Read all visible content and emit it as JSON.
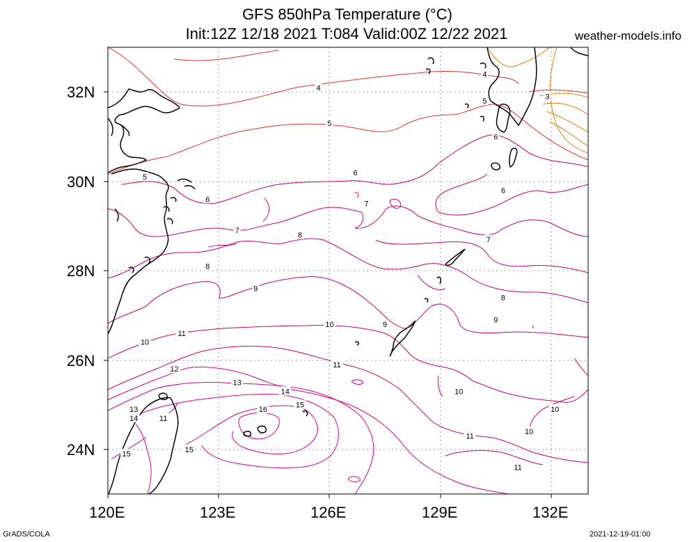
{
  "title": {
    "line1": "GFS 850hPa Temperature (°C)",
    "line2": "Init:12Z 12/18 2021 T:084 Valid:00Z 12/22 2021"
  },
  "site": "weather-models.info",
  "footer": {
    "left": "GrADS/COLA",
    "right": "2021-12-19-01:00"
  },
  "axes": {
    "lat_labels": [
      "32N",
      "30N",
      "28N",
      "26N",
      "24N"
    ],
    "lon_labels": [
      "120E",
      "123E",
      "126E",
      "129E",
      "132E"
    ]
  },
  "extent": {
    "lon": [
      120,
      133
    ],
    "lat": [
      23,
      33
    ]
  },
  "colors": {
    "cold_contours": "#d8810a",
    "cool_contours": "#e0302e",
    "mid_contours": "#c8006a",
    "warm_contours": "#d6008a",
    "coastline": "#000000",
    "grid": "#9a9a9a"
  },
  "contour_labels": [
    {
      "text": "3",
      "lon": 131.9,
      "lat": 31.9
    },
    {
      "text": "4",
      "lon": 125.7,
      "lat": 32.1
    },
    {
      "text": "4",
      "lon": 130.2,
      "lat": 32.4
    },
    {
      "text": "5",
      "lon": 130.2,
      "lat": 31.8
    },
    {
      "text": "5",
      "lon": 126.0,
      "lat": 31.3
    },
    {
      "text": "5",
      "lon": 121.0,
      "lat": 30.1
    },
    {
      "text": "6",
      "lon": 130.5,
      "lat": 31.0
    },
    {
      "text": "6",
      "lon": 126.7,
      "lat": 30.2
    },
    {
      "text": "6",
      "lon": 122.7,
      "lat": 29.6
    },
    {
      "text": "6",
      "lon": 130.7,
      "lat": 29.8
    },
    {
      "text": "7",
      "lon": 127.0,
      "lat": 29.5
    },
    {
      "text": "7",
      "lon": 123.5,
      "lat": 28.9
    },
    {
      "text": "7",
      "lon": 130.3,
      "lat": 28.7
    },
    {
      "text": "8",
      "lon": 125.2,
      "lat": 28.8
    },
    {
      "text": "8",
      "lon": 122.7,
      "lat": 28.1
    },
    {
      "text": "8",
      "lon": 130.7,
      "lat": 27.4
    },
    {
      "text": "9",
      "lon": 124.0,
      "lat": 27.6
    },
    {
      "text": "9",
      "lon": 127.5,
      "lat": 26.8
    },
    {
      "text": "9",
      "lon": 130.5,
      "lat": 26.9
    },
    {
      "text": "10",
      "lon": 126.0,
      "lat": 26.8
    },
    {
      "text": "10",
      "lon": 121.0,
      "lat": 26.4
    },
    {
      "text": "10",
      "lon": 129.5,
      "lat": 25.3
    },
    {
      "text": "10",
      "lon": 132.1,
      "lat": 24.9
    },
    {
      "text": "10",
      "lon": 131.4,
      "lat": 24.4
    },
    {
      "text": "11",
      "lon": 122.0,
      "lat": 26.6
    },
    {
      "text": "11",
      "lon": 126.2,
      "lat": 25.9
    },
    {
      "text": "11",
      "lon": 121.5,
      "lat": 24.7
    },
    {
      "text": "11",
      "lon": 129.8,
      "lat": 24.3
    },
    {
      "text": "11",
      "lon": 131.1,
      "lat": 23.6
    },
    {
      "text": "12",
      "lon": 121.8,
      "lat": 25.8
    },
    {
      "text": "13",
      "lon": 123.5,
      "lat": 25.5
    },
    {
      "text": "13",
      "lon": 120.7,
      "lat": 24.9
    },
    {
      "text": "14",
      "lon": 124.8,
      "lat": 25.3
    },
    {
      "text": "14",
      "lon": 120.7,
      "lat": 24.7
    },
    {
      "text": "15",
      "lon": 125.2,
      "lat": 25.0
    },
    {
      "text": "15",
      "lon": 122.2,
      "lat": 24.0
    },
    {
      "text": "15",
      "lon": 120.5,
      "lat": 23.9
    },
    {
      "text": "16",
      "lon": 124.2,
      "lat": 24.9
    }
  ]
}
